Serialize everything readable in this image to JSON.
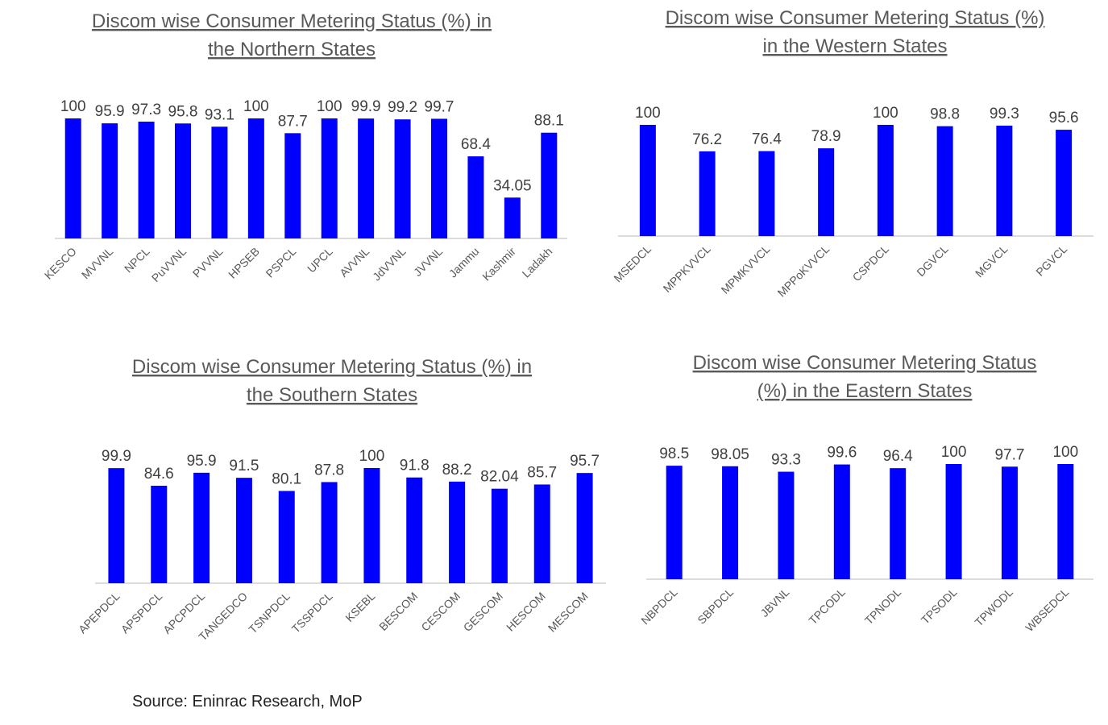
{
  "chart_data": [
    {
      "type": "bar",
      "title_lines": [
        "Discom wise Consumer Metering Status (%) in",
        "the Northern States"
      ],
      "categories": [
        "KESCO",
        "MVVNL",
        "NPCL",
        "PuVVNL",
        "PVVNL",
        "HPSEB",
        "PSPCL",
        "UPCL",
        "AVVNL",
        "JdVVNL",
        "JVVNL",
        "Jammu",
        "Kashmir",
        "Ladakh"
      ],
      "values": [
        100,
        95.9,
        97.3,
        95.8,
        93.1,
        100,
        87.7,
        100,
        99.9,
        99.2,
        99.7,
        68.4,
        34.05,
        88.1
      ],
      "value_labels": [
        "100",
        "95.9",
        "97.3",
        "95.8",
        "93.1",
        "100",
        "87.7",
        "100",
        "99.9",
        "99.2",
        "99.7",
        "68.4",
        "34.05",
        "88.1"
      ],
      "ylim": [
        0,
        100
      ],
      "grid": false,
      "bar_color": "#0000FF"
    },
    {
      "type": "bar",
      "title_lines": [
        "Discom wise Consumer Metering Status (%)",
        "in the Western States"
      ],
      "categories": [
        "MSEDCL",
        "MPPKVVCL",
        "MPMKVVCL",
        "MPPoKVVCL",
        "CSPDCL",
        "DGVCL",
        "MGVCL",
        "PGVCL"
      ],
      "values": [
        100,
        76.2,
        76.4,
        78.9,
        100,
        98.8,
        99.3,
        95.6
      ],
      "value_labels": [
        "100",
        "76.2",
        "76.4",
        "78.9",
        "100",
        "98.8",
        "99.3",
        "95.6"
      ],
      "ylim": [
        0,
        100
      ],
      "grid": false,
      "bar_color": "#0000FF"
    },
    {
      "type": "bar",
      "title_lines": [
        "Discom wise Consumer Metering Status (%) in",
        "the Southern States"
      ],
      "categories": [
        "APEPDCL",
        "APSPDCL",
        "APCPDCL",
        "TANGEDCO",
        "TSNPDCL",
        "TSSPDCL",
        "KSEBL",
        "BESCOM",
        "CESCOM",
        "GESCOM",
        "HESCOM",
        "MESCOM"
      ],
      "values": [
        99.9,
        84.6,
        95.9,
        91.5,
        80.1,
        87.8,
        100,
        91.8,
        88.2,
        82.04,
        85.7,
        95.7
      ],
      "value_labels": [
        "99.9",
        "84.6",
        "95.9",
        "91.5",
        "80.1",
        "87.8",
        "100",
        "91.8",
        "88.2",
        "82.04",
        "85.7",
        "95.7"
      ],
      "ylim": [
        0,
        100
      ],
      "grid": false,
      "bar_color": "#0000FF"
    },
    {
      "type": "bar",
      "title_lines": [
        "Discom wise Consumer Metering Status",
        "(%) in the Eastern States"
      ],
      "categories": [
        "NBPDCL",
        "SBPDCL",
        "JBVNL",
        "TPCODL",
        "TPNODL",
        "TPSODL",
        "TPWODL",
        "WBSEDCL"
      ],
      "values": [
        98.5,
        98.05,
        93.3,
        99.6,
        96.4,
        100,
        97.7,
        100
      ],
      "value_labels": [
        "98.5",
        "98.05",
        "93.3",
        "99.6",
        "96.4",
        "100",
        "97.7",
        "100"
      ],
      "ylim": [
        0,
        100
      ],
      "grid": false,
      "bar_color": "#0000FF"
    }
  ],
  "source": "Source: Eninrac Research, MoP"
}
